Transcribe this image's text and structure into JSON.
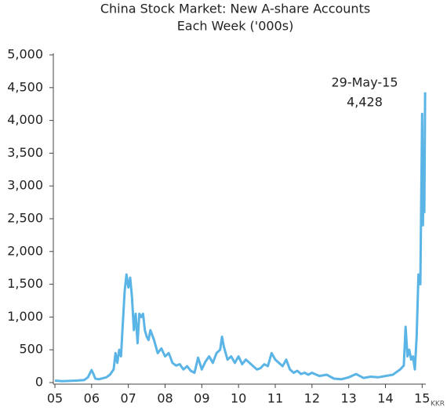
{
  "chart_data": {
    "type": "line",
    "title": [
      "China Stock Market: New A-share Accounts",
      "Each Week ('000s)"
    ],
    "annotation": [
      "29-May-15",
      "4,428"
    ],
    "source": "KKR",
    "xlim": [
      2005,
      2015.1
    ],
    "xticks": [
      {
        "value": 2005,
        "label": "05"
      },
      {
        "value": 2006,
        "label": "06"
      },
      {
        "value": 2007,
        "label": "07"
      },
      {
        "value": 2008,
        "label": "08"
      },
      {
        "value": 2009,
        "label": "09"
      },
      {
        "value": 2010,
        "label": "10"
      },
      {
        "value": 2011,
        "label": "11"
      },
      {
        "value": 2012,
        "label": "12"
      },
      {
        "value": 2013,
        "label": "13"
      },
      {
        "value": 2014,
        "label": "14"
      },
      {
        "value": 2015,
        "label": "15"
      }
    ],
    "ylim": [
      0,
      5000
    ],
    "yticks": [
      0,
      500,
      {
        "value": 1000,
        "label": "1,000"
      },
      {
        "value": 1500,
        "label": "1,500"
      },
      {
        "value": 2000,
        "label": "2,000"
      },
      {
        "value": 2500,
        "label": "2,500"
      },
      {
        "value": 3000,
        "label": "3,000"
      },
      {
        "value": 3500,
        "label": "3,500"
      },
      {
        "value": 4000,
        "label": "4,000"
      },
      {
        "value": 4500,
        "label": "4,500"
      },
      {
        "value": 5000,
        "label": "5,000"
      }
    ],
    "grid": false,
    "series": [
      {
        "color": "#5ab4e5",
        "x": [
          2005.0,
          2005.2,
          2005.4,
          2005.6,
          2005.8,
          2005.9,
          2006.0,
          2006.05,
          2006.1,
          2006.2,
          2006.4,
          2006.5,
          2006.6,
          2006.65,
          2006.7,
          2006.75,
          2006.8,
          2006.85,
          2006.9,
          2006.95,
          2007.0,
          2007.05,
          2007.1,
          2007.15,
          2007.2,
          2007.25,
          2007.3,
          2007.35,
          2007.4,
          2007.45,
          2007.5,
          2007.55,
          2007.6,
          2007.7,
          2007.8,
          2007.9,
          2008.0,
          2008.1,
          2008.2,
          2008.3,
          2008.4,
          2008.5,
          2008.6,
          2008.7,
          2008.8,
          2008.9,
          2009.0,
          2009.1,
          2009.2,
          2009.3,
          2009.4,
          2009.5,
          2009.55,
          2009.6,
          2009.7,
          2009.8,
          2009.9,
          2010.0,
          2010.1,
          2010.2,
          2010.3,
          2010.4,
          2010.5,
          2010.6,
          2010.7,
          2010.8,
          2010.9,
          2011.0,
          2011.1,
          2011.2,
          2011.3,
          2011.4,
          2011.5,
          2011.6,
          2011.7,
          2011.8,
          2011.9,
          2012.0,
          2012.2,
          2012.4,
          2012.6,
          2012.8,
          2013.0,
          2013.2,
          2013.4,
          2013.6,
          2013.8,
          2014.0,
          2014.2,
          2014.4,
          2014.5,
          2014.55,
          2014.6,
          2014.65,
          2014.7,
          2014.75,
          2014.8,
          2014.85,
          2014.9,
          2014.95,
          2015.0,
          2015.02,
          2015.04,
          2015.06,
          2015.08
        ],
        "values": [
          30,
          20,
          25,
          30,
          40,
          80,
          190,
          130,
          60,
          50,
          80,
          120,
          200,
          450,
          300,
          500,
          400,
          900,
          1400,
          1650,
          1450,
          1600,
          1300,
          800,
          1050,
          600,
          1050,
          1000,
          1050,
          800,
          700,
          650,
          800,
          650,
          450,
          520,
          400,
          450,
          300,
          260,
          280,
          200,
          250,
          180,
          150,
          380,
          200,
          320,
          400,
          300,
          450,
          500,
          700,
          550,
          350,
          400,
          300,
          400,
          280,
          350,
          300,
          250,
          200,
          220,
          280,
          250,
          450,
          350,
          300,
          250,
          350,
          200,
          150,
          180,
          130,
          150,
          120,
          150,
          100,
          120,
          60,
          50,
          80,
          130,
          70,
          90,
          80,
          100,
          120,
          200,
          260,
          850,
          400,
          500,
          350,
          400,
          200,
          700,
          1650,
          1500,
          4100,
          2400,
          3200,
          2600,
          4428
        ]
      }
    ]
  }
}
